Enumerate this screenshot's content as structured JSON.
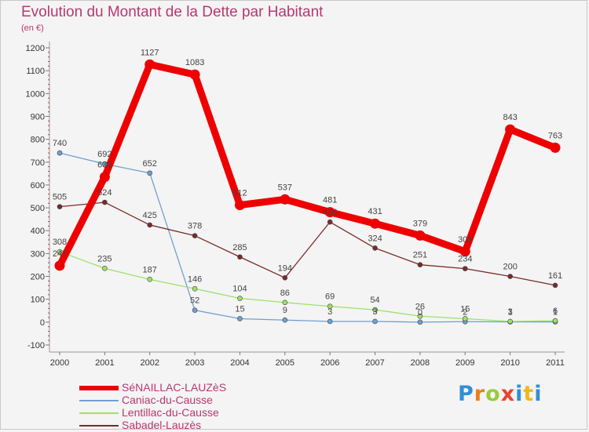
{
  "title": "Evolution du Montant de la Dette par Habitant",
  "subtitle": "(en €)",
  "brand": "Proxiti",
  "chart_data": {
    "type": "line",
    "x": [
      "2000",
      "2001",
      "2002",
      "2003",
      "2004",
      "2005",
      "2006",
      "2007",
      "2008",
      "2009",
      "2010",
      "2011"
    ],
    "ylim": [
      -100,
      1200
    ],
    "yticks": [
      "-100",
      "0",
      "100",
      "200",
      "300",
      "400",
      "500",
      "600",
      "700",
      "800",
      "900",
      "1000",
      "1100",
      "1200"
    ],
    "grid": false,
    "legend_position": "bottom-left",
    "series": [
      {
        "name": "SéNAILLAC-LAUZèS",
        "color": "#ee0000",
        "values": [
          247,
          635,
          1127,
          1083,
          512,
          537,
          481,
          431,
          379,
          309,
          843,
          763
        ],
        "labels": [
          "247",
          "635",
          "1127",
          "1083",
          "512",
          "537",
          "481",
          "431",
          "379",
          "309",
          "843",
          "763"
        ]
      },
      {
        "name": "Caniac-du-Causse",
        "color": "#6fa0cf",
        "values": [
          740,
          692,
          652,
          52,
          15,
          9,
          3,
          3,
          0,
          2,
          1,
          1
        ],
        "labels": [
          "740",
          "692",
          "652",
          "52",
          "15",
          "9",
          "3",
          "3",
          "0",
          "2",
          "1",
          "1"
        ]
      },
      {
        "name": "Lentillac-du-Causse",
        "color": "#9ee06a",
        "values": [
          308,
          235,
          187,
          146,
          104,
          86,
          69,
          54,
          26,
          15,
          3,
          6
        ],
        "labels": [
          "308",
          "235",
          "187",
          "146",
          "104",
          "86",
          "69",
          "54",
          "26",
          "15",
          "3",
          "6"
        ]
      },
      {
        "name": "Sabadel-Lauzès",
        "color": "#7a2a2a",
        "values": [
          505,
          524,
          425,
          378,
          285,
          194,
          438,
          324,
          251,
          234,
          200,
          161
        ],
        "labels": [
          "505",
          "524",
          "425",
          "378",
          "285",
          "194",
          "438",
          "324",
          "251",
          "234",
          "200",
          "161"
        ]
      }
    ]
  }
}
